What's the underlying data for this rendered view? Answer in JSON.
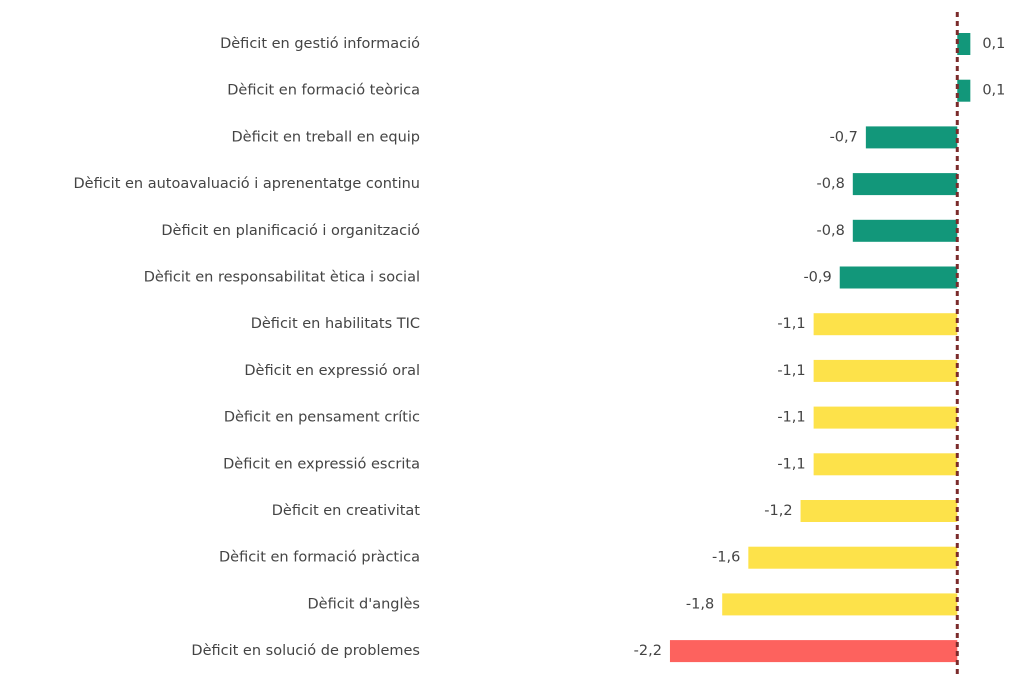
{
  "chart_data": {
    "type": "barh",
    "categories": [
      "Dèficit en gestió informació",
      "Dèficit en formació teòrica",
      "Dèficit en treball en equip",
      "Dèficit en autoavaluació i aprenentatge continu",
      "Dèficit en planificació i organització",
      "Dèficit en responsabilitat ètica i social",
      "Dèficit en habilitats TIC",
      "Dèficit en expressió oral",
      "Dèficit en pensament crític",
      "Dèficit en expressió escrita",
      "Dèficit en creativitat",
      "Dèficit en formació pràctica",
      "Dèficit d'anglès",
      "Dèficit en solució de problemes"
    ],
    "values": [
      0.1,
      0.1,
      -0.7,
      -0.8,
      -0.8,
      -0.9,
      -1.1,
      -1.1,
      -1.1,
      -1.1,
      -1.2,
      -1.6,
      -1.8,
      -2.2
    ],
    "value_labels": [
      "0,1",
      "0,1",
      "-0,7",
      "-0,8",
      "-0,8",
      "-0,9",
      "-1,1",
      "-1,1",
      "-1,1",
      "-1,1",
      "-1,2",
      "-1,6",
      "-1,8",
      "-2,2"
    ],
    "colors": [
      "#12977a",
      "#12977a",
      "#12977a",
      "#12977a",
      "#12977a",
      "#12977a",
      "#fde24a",
      "#fde24a",
      "#fde24a",
      "#fde24a",
      "#fde24a",
      "#fde24a",
      "#fde24a",
      "#fd625e"
    ],
    "xlim": [
      -2.3,
      0.2
    ]
  }
}
